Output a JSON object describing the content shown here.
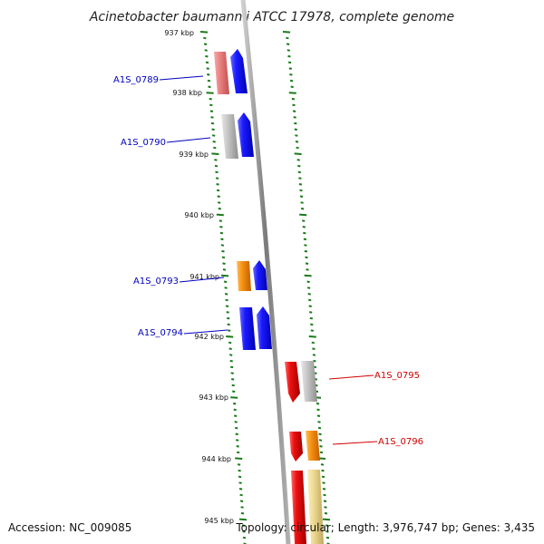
{
  "title": "Acinetobacter baumannii ATCC 17978, complete genome",
  "accession": "Accession: NC_009085",
  "topology": "Topology: circular; Length: 3,976,747 bp; Genes: 3,435",
  "ticks": [
    "937 kbp",
    "938 kbp",
    "939 kbp",
    "940 kbp",
    "941 kbp",
    "942 kbp",
    "943 kbp",
    "944 kbp",
    "945 kbp"
  ],
  "gene_labels": [
    "A1S_0789",
    "A1S_0790",
    "A1S_0793",
    "A1S_0794",
    "A1S_0795",
    "A1S_0796"
  ],
  "colors": {
    "blue": "#1010e8",
    "red": "#e01010",
    "orange": "#f08c10",
    "gray": "#b8b8b8",
    "pink": "#e88080",
    "khaki": "#e8d890",
    "tick_green": "#1a7a1a",
    "backbone": "#888888"
  }
}
